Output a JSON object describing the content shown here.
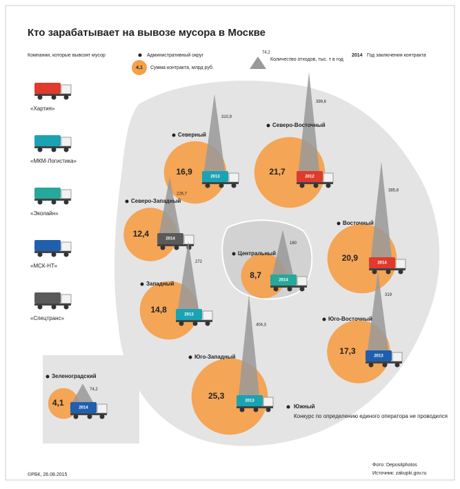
{
  "title": "Кто зарабатывает на вывозе мусора в Москве",
  "legend": {
    "companies_caption": "Компании, которые вывозят мусор",
    "district": "Административный округ",
    "circle_sample": "4,1",
    "circle_caption": "Сумма контракта, млрд руб.",
    "triangle_sample": "74,2",
    "triangle_caption": "Количество отходов, тыс. т в год",
    "year_sample": "2014",
    "year_caption": "Год заключения контракта"
  },
  "companies": [
    {
      "name": "«Хартия»",
      "color": "#e03a2c"
    },
    {
      "name": "«МКМ-Логистика»",
      "color": "#1aa3b3"
    },
    {
      "name": "«Эколайн»",
      "color": "#26a89a"
    },
    {
      "name": "«МСК-НТ»",
      "color": "#1f5fae"
    },
    {
      "name": "«Спецтранс»",
      "color": "#5a5a5a"
    }
  ],
  "districts": [
    {
      "name": "Северный",
      "contract": {
        "value": 16.9,
        "label": "16,9"
      },
      "volume": {
        "value": 310.9,
        "label": "310,9"
      },
      "year": 2013,
      "color": "#1aa3b3"
    },
    {
      "name": "Северо-Восточный",
      "contract": {
        "value": 21.7,
        "label": "21,7"
      },
      "volume": {
        "value": 399.6,
        "label": "399,6"
      },
      "year": 2012,
      "color": "#e03a2c"
    },
    {
      "name": "Северо-Западный",
      "contract": {
        "value": 12.4,
        "label": "12,4"
      },
      "volume": {
        "value": 226.7,
        "label": "226,7"
      },
      "year": 2014,
      "color": "#5a5a5a"
    },
    {
      "name": "Центральный",
      "contract": {
        "value": 8.7,
        "label": "8,7"
      },
      "volume": {
        "value": 180,
        "label": "180"
      },
      "year": 2014,
      "color": "#26a89a"
    },
    {
      "name": "Восточный",
      "contract": {
        "value": 20.9,
        "label": "20,9"
      },
      "volume": {
        "value": 385.8,
        "label": "385,8"
      },
      "year": 2014,
      "color": "#e03a2c"
    },
    {
      "name": "Западный",
      "contract": {
        "value": 14.8,
        "label": "14,8"
      },
      "volume": {
        "value": 272,
        "label": "272"
      },
      "year": 2013,
      "color": "#1aa3b3"
    },
    {
      "name": "Юго-Восточный",
      "contract": {
        "value": 17.3,
        "label": "17,3"
      },
      "volume": {
        "value": 319,
        "label": "319"
      },
      "year": 2013,
      "color": "#1f5fae"
    },
    {
      "name": "Юго-Западный",
      "contract": {
        "value": 25.3,
        "label": "25,3"
      },
      "volume": {
        "value": 404.3,
        "label": "404,3"
      },
      "year": 2013,
      "color": "#1aa3b3"
    },
    {
      "name": "Зеленоградский",
      "contract": {
        "value": 4.1,
        "label": "4,1"
      },
      "volume": {
        "value": 74.2,
        "label": "74,2"
      },
      "year": 2014,
      "color": "#1f5fae"
    }
  ],
  "south": {
    "name": "Южный",
    "note": "Конкурс по определению единого оператора не проводился"
  },
  "footer": {
    "copyright": "©РБК, 26.08.2015",
    "photo": "Фото: Depositphotos",
    "source": "Источник: zakupki.gov.ru"
  }
}
